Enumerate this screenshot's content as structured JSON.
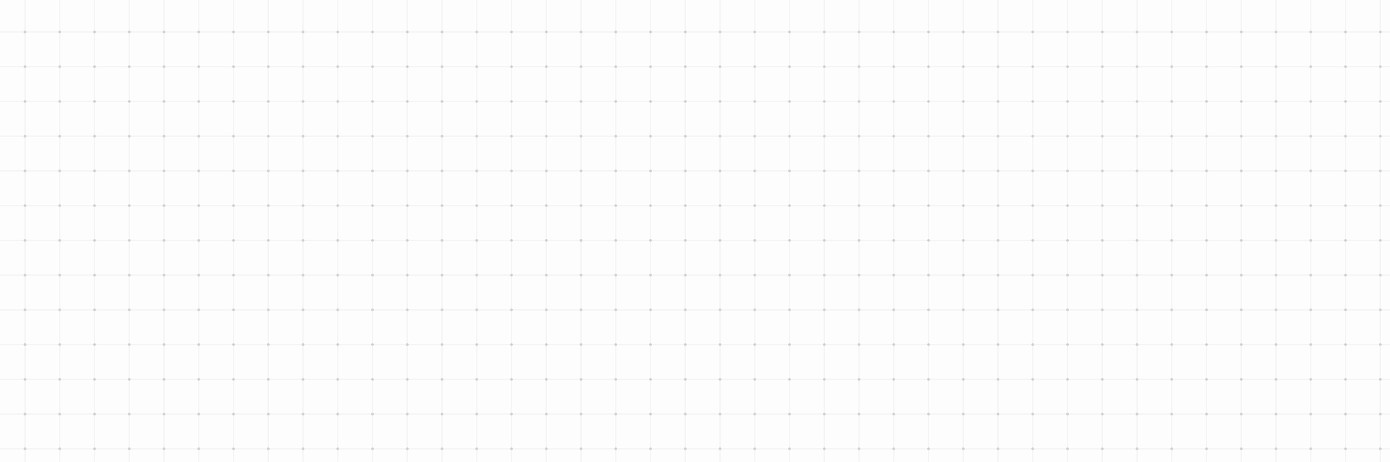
{
  "canvas": {
    "grid": "dotted",
    "background_color": "#fdfdfd",
    "grid_line_color": "#ededed",
    "grid_dot_color": "#cfcfcf"
  }
}
